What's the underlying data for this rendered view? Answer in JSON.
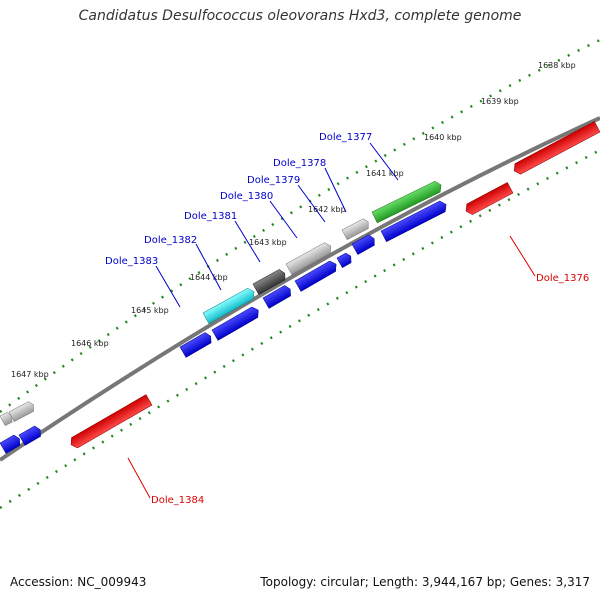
{
  "title": "Candidatus Desulfococcus oleovorans Hxd3, complete genome",
  "footer": {
    "accession": "Accession: NC_009943",
    "info": "Topology: circular; Length: 3,944,167 bp; Genes: 3,317"
  },
  "kbp_ticks": [
    "1638 kbp",
    "1639 kbp",
    "1640 kbp",
    "1641 kbp",
    "1642 kbp",
    "1643 kbp",
    "1644 kbp",
    "1645 kbp",
    "1646 kbp",
    "1647 kbp"
  ],
  "gene_labels": {
    "dole_1377": "Dole_1377",
    "dole_1378": "Dole_1378",
    "dole_1379": "Dole_1379",
    "dole_1380": "Dole_1380",
    "dole_1381": "Dole_1381",
    "dole_1382": "Dole_1382",
    "dole_1383": "Dole_1383",
    "dole_1376": "Dole_1376",
    "dole_1384": "Dole_1384"
  },
  "colors": {
    "blue": "#0000ee",
    "red": "#ee0000",
    "green": "#33bb33",
    "cyan": "#22dddd",
    "gray": "#b0b0b0",
    "darkgray": "#555555",
    "backbone": "#777777",
    "dots": "#228822"
  }
}
